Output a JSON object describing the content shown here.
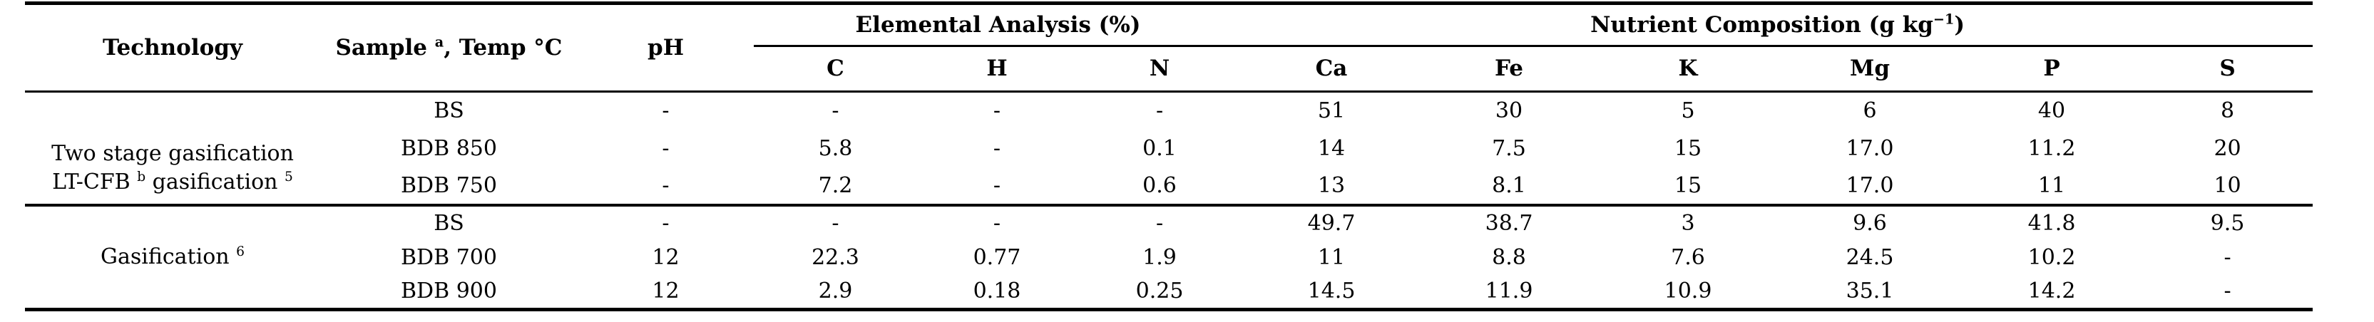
{
  "table": {
    "columns": {
      "technology": "Technology",
      "sample_base": "Sample ",
      "sample_sup": "a",
      "sample_rest": ", Temp °C",
      "ph": "pH",
      "elemental_group": "Elemental Analysis (%)",
      "nutrient_base": "Nutrient Composition (g kg",
      "nutrient_sup": "−1",
      "nutrient_close": ")",
      "subcols": [
        "C",
        "H",
        "N",
        "Ca",
        "Fe",
        "K",
        "Mg",
        "P",
        "S"
      ]
    },
    "groups": [
      {
        "technology_line1": "Two stage gasification",
        "technology_line2_base": "LT-CFB ",
        "technology_line2_sup1": "b",
        "technology_line2_mid": " gasification ",
        "technology_line2_sup2": "5",
        "rows": [
          {
            "sample": "BS",
            "ph": "-",
            "values": [
              "-",
              "-",
              "-",
              "51",
              "30",
              "5",
              "6",
              "40",
              "8"
            ]
          },
          {
            "sample": "BDB 850",
            "ph": "-",
            "values": [
              "5.8",
              "-",
              "0.1",
              "14",
              "7.5",
              "15",
              "17.0",
              "11.2",
              "20"
            ]
          },
          {
            "sample": "BDB 750",
            "ph": "-",
            "values": [
              "7.2",
              "-",
              "0.6",
              "13",
              "8.1",
              "15",
              "17.0",
              "11",
              "10"
            ]
          }
        ]
      },
      {
        "technology_base": "Gasification ",
        "technology_sup": "6",
        "rows": [
          {
            "sample": "BS",
            "ph": "-",
            "values": [
              "-",
              "-",
              "-",
              "49.7",
              "38.7",
              "3",
              "9.6",
              "41.8",
              "9.5"
            ]
          },
          {
            "sample": "BDB 700",
            "ph": "12",
            "values": [
              "22.3",
              "0.77",
              "1.9",
              "11",
              "8.8",
              "7.6",
              "24.5",
              "10.2",
              "-"
            ]
          },
          {
            "sample": "BDB 900",
            "ph": "12",
            "values": [
              "2.9",
              "0.18",
              "0.25",
              "14.5",
              "11.9",
              "10.9",
              "35.1",
              "14.2",
              "-"
            ]
          }
        ]
      }
    ]
  }
}
